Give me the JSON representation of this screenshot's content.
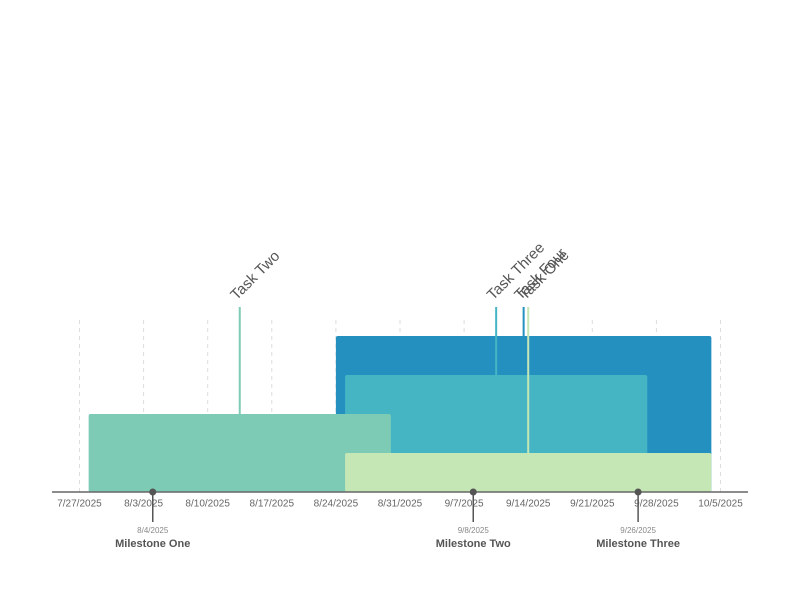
{
  "chart_data": {
    "type": "timeline",
    "xlim": [
      "7/24/2025",
      "10/8/2025"
    ],
    "xticks": [
      "7/27/2025",
      "8/3/2025",
      "8/10/2025",
      "8/17/2025",
      "8/24/2025",
      "8/31/2025",
      "9/7/2025",
      "9/14/2025",
      "9/21/2025",
      "9/28/2025",
      "10/5/2025"
    ],
    "grid": true,
    "tasks": [
      {
        "name": "Task Four",
        "start": "8/24/2025",
        "end": "10/4/2025",
        "color": "#2490c0"
      },
      {
        "name": "Task Three",
        "start": "8/25/2025",
        "end": "9/27/2025",
        "color": "#45b5c4"
      },
      {
        "name": "Task Two",
        "start": "7/28/2025",
        "end": "8/30/2025",
        "color": "#7ecbb5"
      },
      {
        "name": "Task One",
        "start": "8/25/2025",
        "end": "10/4/2025",
        "color": "#c5e6b5"
      }
    ],
    "milestones": [
      {
        "name": "Milestone One",
        "date": "8/4/2025"
      },
      {
        "name": "Milestone Two",
        "date": "9/8/2025"
      },
      {
        "name": "Milestone Three",
        "date": "9/26/2025"
      }
    ]
  }
}
